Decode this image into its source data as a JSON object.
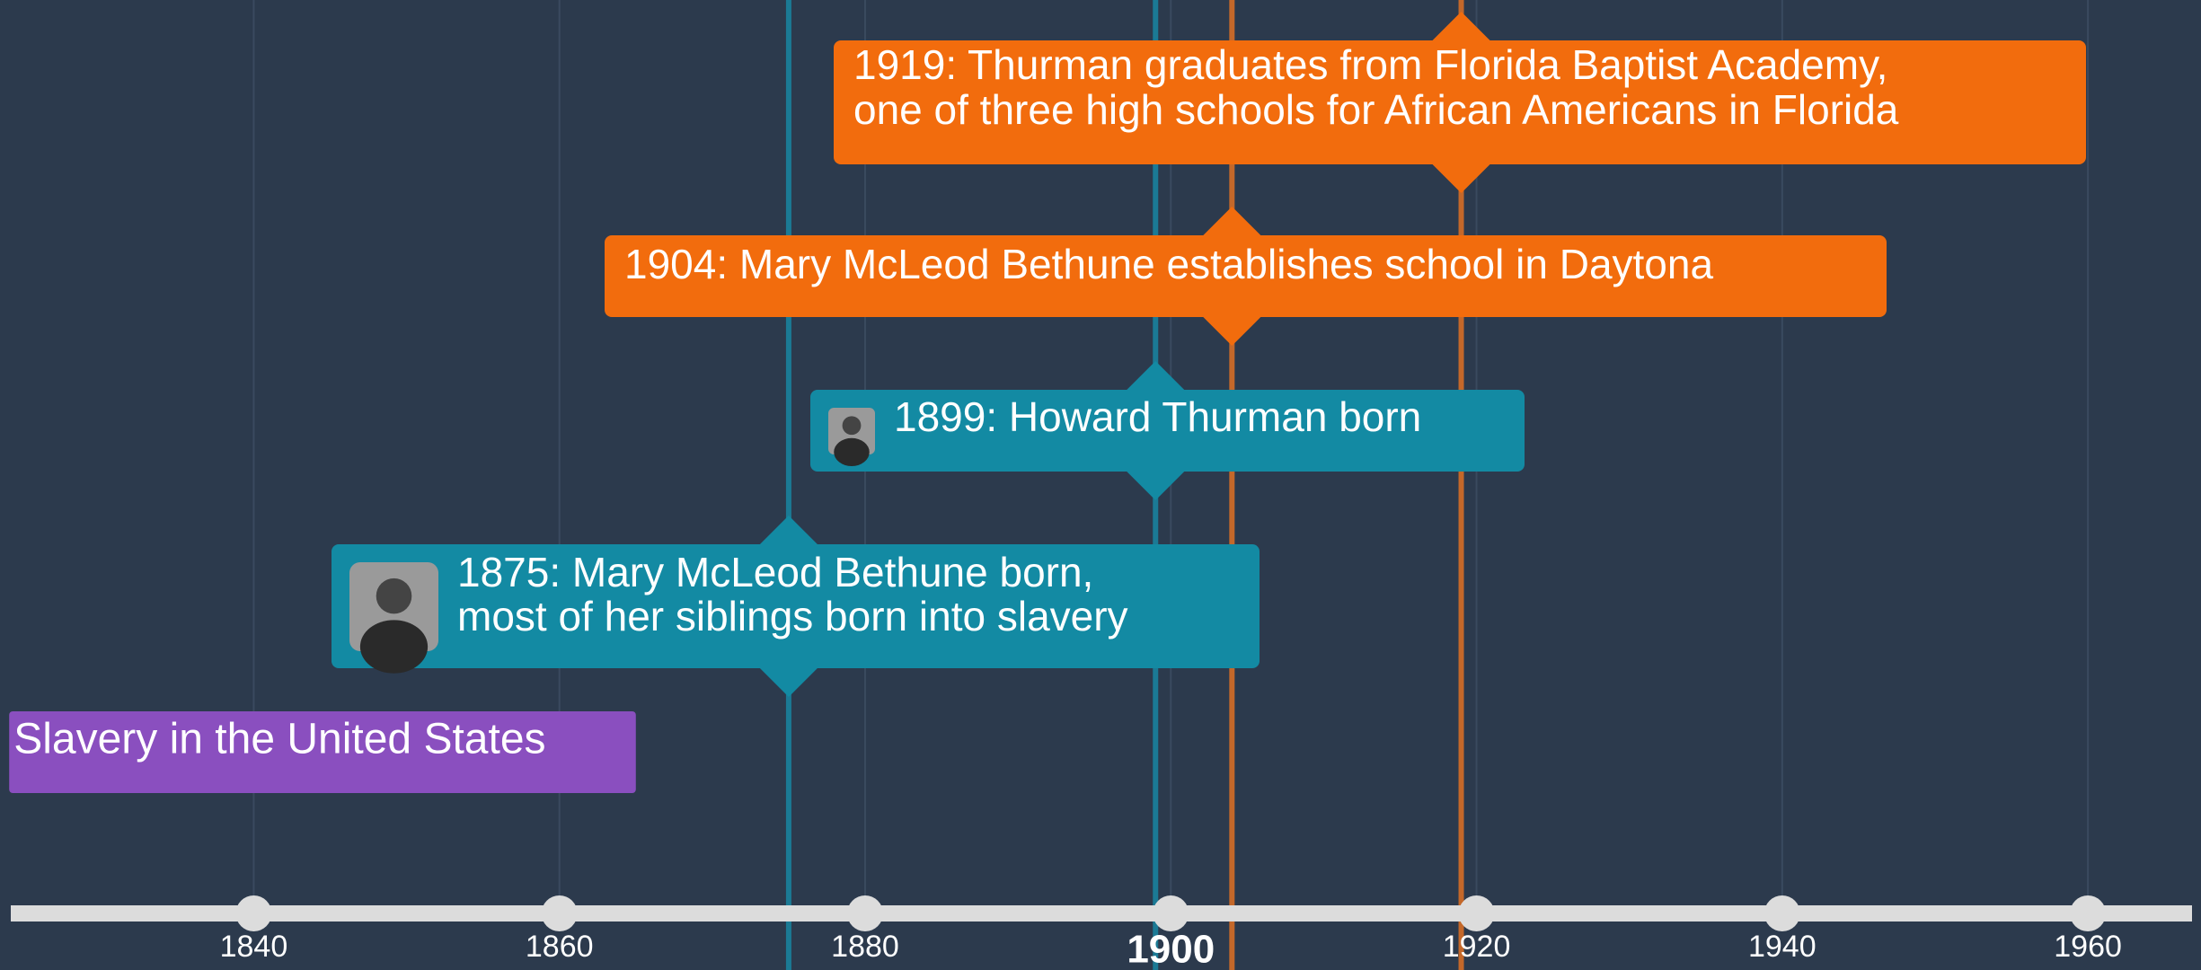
{
  "axis": {
    "xlim": [
      1823.4,
      1967.4
    ],
    "ticks": [
      1840,
      1860,
      1880,
      1900,
      1920,
      1940,
      1960
    ],
    "current_tick": 1900
  },
  "span": {
    "label": "Slavery in the United States",
    "start": 1824,
    "end": 1865,
    "color": "#8a4fbf"
  },
  "events": [
    {
      "year": 1919,
      "color": "#f26c0d",
      "line_color": "#c4682a",
      "lines": [
        "1919: Thurman graduates from Florida Baptist Academy,",
        "one of three high schools for African Americans in Florida"
      ]
    },
    {
      "year": 1904,
      "color": "#f26c0d",
      "line_color": "#c4682a",
      "lines": [
        "1904: Mary McLeod Bethune establishes school in Daytona"
      ]
    },
    {
      "year": 1899,
      "color": "#138aa3",
      "line_color": "#1b7a95",
      "lines": [
        "1899: Howard Thurman born"
      ]
    },
    {
      "year": 1875,
      "color": "#138aa3",
      "line_color": "#1b7a95",
      "lines": [
        "1875: Mary McLeod Bethune born,",
        "most of her siblings born into slavery"
      ]
    }
  ]
}
